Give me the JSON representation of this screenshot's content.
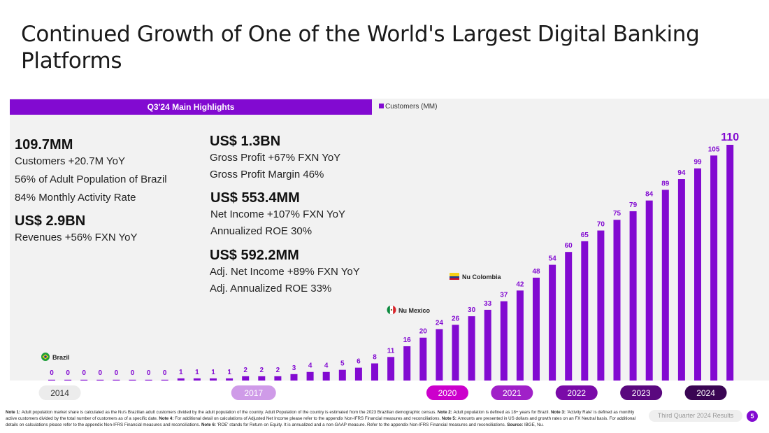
{
  "title": "Continued Growth of One of the World's Largest Digital Banking Platforms",
  "highlights_header": "Q3'24 Main Highlights",
  "kpis_left": [
    {
      "big": "109.7MM",
      "lines": [
        "Customers +20.7M YoY",
        "56% of Adult Population of Brazil",
        "84% Monthly Activity Rate"
      ]
    },
    {
      "big": "US$ 2.9BN",
      "lines": [
        "Revenues +56%  FXN YoY"
      ]
    }
  ],
  "kpis_right": [
    {
      "big": "US$ 1.3BN",
      "lines": [
        "Gross Profit +67%  FXN YoY",
        "Gross Profit Margin 46%"
      ]
    },
    {
      "big": "US$ 553.4MM",
      "lines": [
        "Net Income +107% FXN YoY",
        "Annualized ROE 30%"
      ]
    },
    {
      "big": "US$ 592.2MM",
      "lines": [
        "Adj. Net Income +89% FXN YoY",
        "Adj. Annualized ROE 33%"
      ]
    }
  ],
  "chart_data": {
    "type": "bar",
    "series": [
      {
        "name": "Customers (MM)",
        "values": [
          0,
          0,
          0,
          0,
          0,
          0,
          0,
          0,
          1,
          1,
          1,
          1,
          2,
          2,
          2,
          3,
          4,
          4,
          5,
          6,
          8,
          11,
          16,
          20,
          24,
          26,
          30,
          33,
          37,
          42,
          48,
          54,
          60,
          65,
          70,
          75,
          79,
          84,
          89,
          94,
          99,
          105,
          110
        ]
      }
    ],
    "year_labels": [
      {
        "label": "2014",
        "start": 0,
        "end": 1,
        "color": "#ececec",
        "text_color": "#333333"
      },
      {
        "label": "2017",
        "start": 12,
        "end": 13,
        "color": "#cf9be8",
        "text_color": "#ffffff"
      },
      {
        "label": "2020",
        "start": 24,
        "end": 25,
        "color": "#cc00cc",
        "text_color": "#ffffff"
      },
      {
        "label": "2021",
        "start": 28,
        "end": 29,
        "color": "#a020c8",
        "text_color": "#ffffff"
      },
      {
        "label": "2022",
        "start": 32,
        "end": 33,
        "color": "#7a0aa8",
        "text_color": "#ffffff"
      },
      {
        "label": "2023",
        "start": 36,
        "end": 37,
        "color": "#5a087f",
        "text_color": "#ffffff"
      },
      {
        "label": "2024",
        "start": 40,
        "end": 41,
        "color": "#3a0553",
        "text_color": "#ffffff"
      }
    ],
    "annotations": [
      {
        "label": "Brazil",
        "index": 0,
        "flag": "brazil"
      },
      {
        "label": "Nu Mexico",
        "index": 21,
        "flag": "mexico"
      },
      {
        "label": "Nu Colombia",
        "index": 25,
        "flag": "colombia"
      }
    ],
    "bar_color": "#820ad1",
    "label_color": "#820ad1",
    "ylim": [
      0,
      110
    ]
  },
  "notes": [
    {
      "bold": "Note 1: ",
      "text": "Adult population market share is calculated as the Nu's Brazilian adult customers divided by the adult population of the country. Adult Population of the country is estimated from the 2023 Brazilian demographic census. "
    },
    {
      "bold": "Note 2: ",
      "text": "Adult population is defined as 18+ years for Brazil. "
    },
    {
      "bold": "Note 3: ",
      "text": "'Activity Rate' is defined as monthly active customers divided by the total number of customers as of a specific date. "
    },
    {
      "bold": "Note 4: ",
      "text": "For additional detail on calculations of Adjusted Net Income please refer to the appendix Non-IFRS Financial measures and reconciliations. "
    },
    {
      "bold": "Note 5: ",
      "text": "Amounts are presented in US dollars and growth rates on an FX Neutral basis. For additional details on calculations please refer to the appendix Non-IFRS Financial measures and reconciliations. "
    },
    {
      "bold": "Note 6: ",
      "text": "'ROE' stands for Return on Equity. It is annualized and a non-GAAP measure. Refer to the appendix Non-IFRS Financial measures and reconciliations. "
    },
    {
      "bold": "Source: ",
      "text": "IBGE, Nu."
    }
  ],
  "footer": {
    "report": "Third Quarter 2024 Results",
    "page": "5"
  }
}
